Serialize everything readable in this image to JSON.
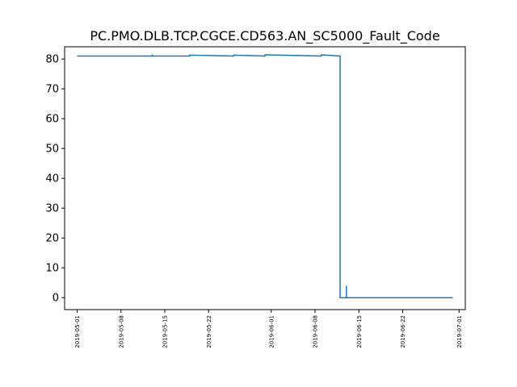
{
  "chart_data": {
    "type": "line",
    "title": "PC.PMO.DLB.TCP.CGCE.CD563.AN_SC5000_Fault_Code",
    "xlabel": "",
    "ylabel": "",
    "ylim": [
      -4,
      84.1
    ],
    "xlim": [
      "2019-04-29",
      "2019-07-02"
    ],
    "grid": false,
    "line_color": "#1f77b4",
    "yticks": [
      0,
      10,
      20,
      30,
      40,
      50,
      60,
      70,
      80
    ],
    "xticks": [
      "2019-05-01",
      "2019-05-08",
      "2019-05-15",
      "2019-05-22",
      "2019-06-01",
      "2019-06-08",
      "2019-06-15",
      "2019-06-22",
      "2019-07-01"
    ],
    "series": [
      {
        "x": [
          "2019-05-01",
          "2019-05-13",
          "2019-05-13",
          "2019-05-13",
          "2019-05-19",
          "2019-05-19",
          "2019-05-26",
          "2019-05-26",
          "2019-05-31",
          "2019-05-31",
          "2019-06-09",
          "2019-06-09",
          "2019-06-12",
          "2019-06-12",
          "2019-06-13",
          "2019-06-13",
          "2019-06-13",
          "2019-06-30"
        ],
        "y": [
          81,
          81,
          81.5,
          81,
          81,
          81.3,
          81,
          81.3,
          81,
          81.4,
          81,
          81.4,
          81,
          0,
          0,
          4,
          0,
          0
        ]
      }
    ]
  }
}
